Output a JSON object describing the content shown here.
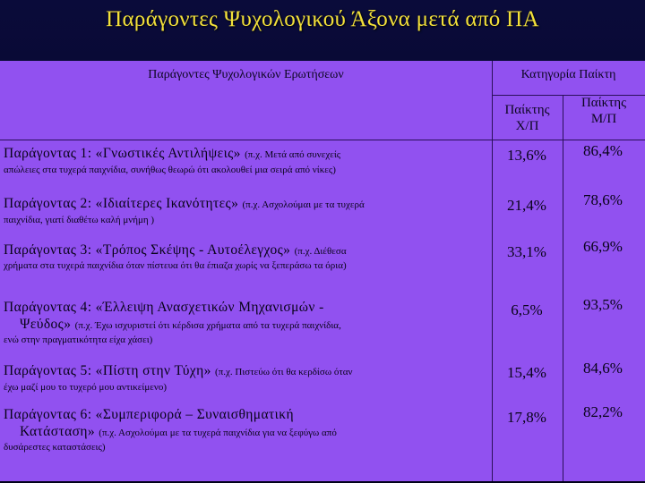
{
  "title": "Παράγοντες Ψυχολογικού Άξονα μετά από ΠΑ",
  "table": {
    "header_questions": "Παράγοντες Ψυχολογικών Ερωτήσεων",
    "header_category": "Κατηγορία Παίκτη",
    "sub_xp": [
      "Παίκτης",
      "Χ/Π"
    ],
    "sub_mp": [
      "Παίκτης",
      "Μ/Π"
    ],
    "rows": [
      {
        "factor": "Παράγοντας 1: «Γνωστικές Αντιλήψεις»",
        "example_start": "(π.χ. Μετά από συνεχείς",
        "continuation": "απώλειες στα τυχερά παιχνίδια, συνήθως θεωρώ ότι ακολουθεί μια σειρά από νίκες)",
        "xp": "13,6%",
        "mp": "86,4%"
      },
      {
        "factor": "Παράγοντας 2: «Ιδιαίτερες Ικανότητες»",
        "example_start": "(π.χ. Ασχολούμαι με τα τυχερά",
        "continuation": "παιχνίδια, γιατί διαθέτω καλή μνήμη )",
        "xp": "21,4%",
        "mp": "78,6%"
      },
      {
        "factor": "Παράγοντας 3: «Τρόπος Σκέψης - Αυτοέλεγχος»",
        "example_start": "(π.χ. Διέθεσα",
        "continuation": "χρήματα στα τυχερά παιχνίδια όταν πίστευα ότι θα έπιαζα χωρίς να ξεπεράσω τα όρια)",
        "xp": "33,1%",
        "mp": "66,9%"
      },
      {
        "factor": "Παράγοντας 4: «Έλλειψη Ανασχετικών Μηχανισμών -",
        "factor_line2": "Ψεύδος»",
        "example_start": "(π.χ. Έχω ισχυριστεί ότι κέρδισα χρήματα από τα τυχερά παιχνίδια,",
        "continuation": "ενώ στην πραγματικότητα είχα χάσει)",
        "xp": "6,5%",
        "mp": "93,5%"
      },
      {
        "factor": "Παράγοντας 5: «Πίστη στην Τύχη»",
        "example_start": "(π.χ. Πιστεύω ότι θα κερδίσω όταν",
        "continuation": "έχω μαζί μου το τυχερό μου αντικείμενο)",
        "xp": "15,4%",
        "mp": "84,6%"
      },
      {
        "factor": "Παράγοντας 6: «Συμπεριφορά – Συναισθηματική",
        "factor_line2": "Κατάσταση»",
        "example_start": "(π.χ. Ασχολούμαι με τα τυχερά παιχνίδια για να ξεφύγω από",
        "continuation": "δυσάρεστες καταστάσεις)",
        "xp": "17,8%",
        "mp": "82,2%"
      }
    ]
  }
}
